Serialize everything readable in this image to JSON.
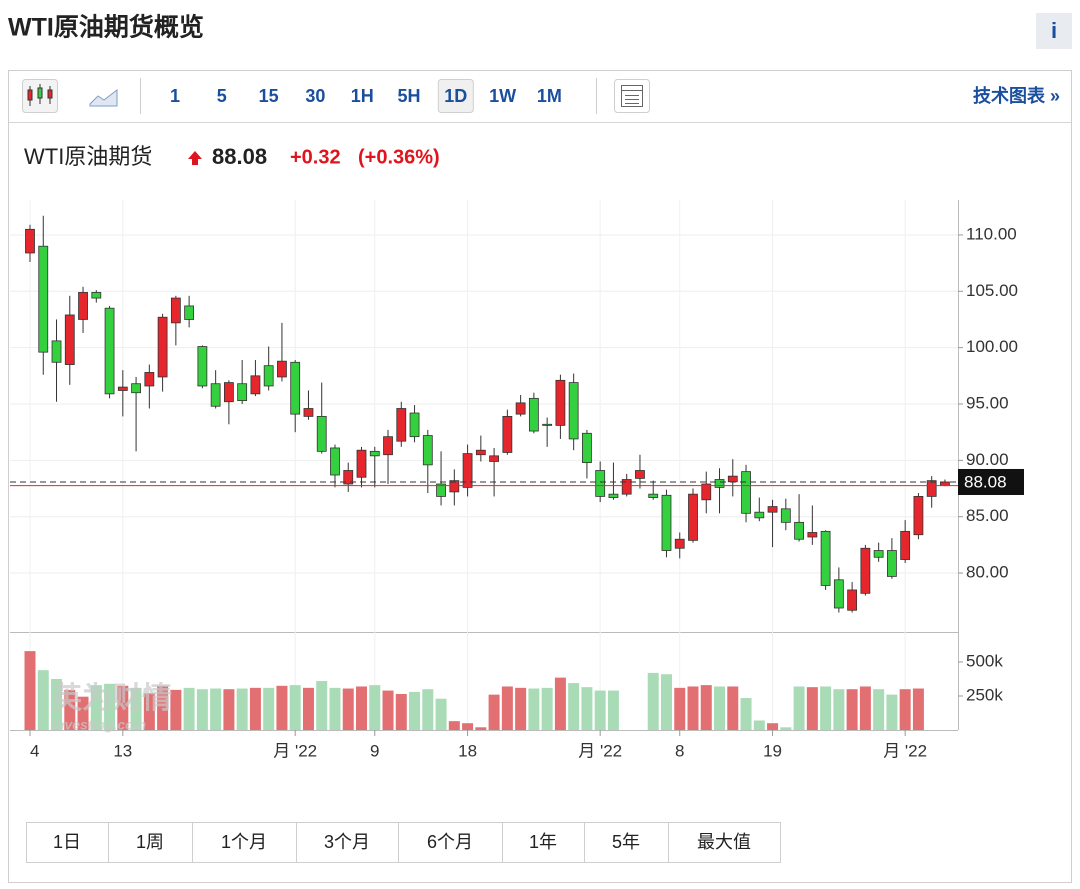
{
  "header": {
    "title": "WTI原油期货概览",
    "info": "i"
  },
  "toolbar": {
    "intervals": [
      "1",
      "5",
      "15",
      "30",
      "1H",
      "5H",
      "1D",
      "1W",
      "1M"
    ],
    "active_interval": 6,
    "link": "技术图表 »"
  },
  "quote": {
    "name": "WTI原油期货",
    "last": 88.08,
    "change": "+0.32",
    "change_pct": "(+0.36%)"
  },
  "watermark": {
    "brand": "英为财情",
    "site": "Investing.com"
  },
  "chart_data": {
    "type": "candlestick",
    "categories": [
      "4",
      null,
      null,
      null,
      null,
      null,
      null,
      "13",
      null,
      null,
      null,
      null,
      null,
      null,
      null,
      null,
      null,
      null,
      null,
      null,
      "月 '22",
      null,
      null,
      null,
      null,
      null,
      "9",
      null,
      null,
      null,
      null,
      null,
      null,
      "18",
      null,
      null,
      null,
      null,
      null,
      null,
      null,
      null,
      null,
      "月 '22",
      null,
      null,
      null,
      null,
      null,
      "8",
      null,
      null,
      null,
      null,
      null,
      null,
      "19",
      null,
      null,
      null,
      null,
      null,
      null,
      null,
      null,
      null,
      "月 '22",
      null,
      null,
      null
    ],
    "open": [
      108.4,
      109.0,
      100.6,
      98.5,
      102.5,
      104.9,
      103.5,
      96.2,
      96.8,
      96.6,
      97.4,
      102.2,
      103.7,
      100.1,
      96.8,
      95.2,
      96.8,
      95.9,
      98.4,
      97.4,
      98.7,
      93.9,
      93.9,
      91.1,
      87.9,
      88.5,
      90.8,
      90.5,
      91.7,
      94.2,
      92.2,
      87.9,
      87.2,
      87.6,
      90.5,
      89.9,
      90.7,
      94.1,
      95.5,
      93.2,
      93.1,
      96.9,
      92.4,
      89.1,
      87.0,
      87.0,
      88.4,
      87.0,
      86.9,
      82.2,
      82.9,
      86.5,
      88.3,
      88.1,
      89.0,
      85.4,
      85.4,
      85.7,
      84.5,
      83.2,
      83.7,
      79.4,
      76.7,
      78.2,
      82.0,
      82.0,
      81.2,
      83.4,
      86.8,
      87.76
    ],
    "high": [
      110.9,
      111.7,
      102.5,
      104.6,
      105.4,
      105.1,
      103.7,
      98.0,
      97.4,
      98.5,
      103.0,
      104.6,
      104.6,
      100.2,
      98.0,
      97.1,
      98.9,
      98.9,
      100.1,
      102.2,
      98.9,
      96.2,
      96.9,
      91.4,
      89.8,
      91.2,
      91.2,
      92.7,
      95.2,
      94.9,
      92.7,
      90.8,
      89.2,
      91.4,
      92.2,
      91.1,
      94.5,
      95.8,
      96.0,
      93.8,
      97.6,
      97.7,
      92.7,
      89.9,
      89.8,
      88.8,
      90.5,
      88.2,
      87.4,
      83.6,
      87.5,
      89.0,
      89.3,
      90.1,
      89.6,
      86.7,
      86.5,
      86.6,
      87.0,
      86.0,
      83.8,
      80.5,
      79.2,
      82.5,
      82.7,
      83.1,
      84.7,
      87.1,
      88.6,
      88.3
    ],
    "low": [
      107.6,
      97.6,
      95.2,
      96.7,
      101.3,
      104.0,
      95.5,
      93.9,
      90.8,
      94.6,
      96.1,
      100.2,
      101.8,
      96.4,
      94.6,
      93.2,
      95.0,
      95.7,
      96.2,
      97.0,
      92.5,
      93.6,
      90.6,
      87.6,
      87.2,
      87.6,
      87.6,
      87.9,
      91.2,
      91.6,
      87.1,
      86.0,
      86.0,
      86.8,
      89.9,
      86.8,
      90.5,
      93.9,
      92.4,
      91.2,
      91.9,
      90.9,
      88.4,
      86.3,
      86.5,
      86.8,
      87.5,
      86.5,
      81.4,
      81.3,
      82.7,
      85.3,
      85.3,
      86.8,
      84.5,
      84.6,
      82.3,
      83.8,
      82.8,
      82.5,
      78.5,
      76.5,
      76.5,
      78.0,
      81.0,
      79.5,
      80.9,
      83.0,
      85.8,
      87.7
    ],
    "close": [
      110.5,
      99.6,
      98.7,
      102.9,
      104.9,
      104.4,
      95.9,
      96.5,
      96.0,
      97.8,
      102.7,
      104.4,
      102.5,
      96.6,
      94.8,
      96.9,
      95.3,
      97.5,
      96.6,
      98.8,
      94.1,
      94.6,
      90.8,
      88.7,
      89.1,
      90.9,
      90.4,
      92.1,
      94.6,
      92.1,
      89.6,
      86.8,
      88.2,
      90.6,
      90.9,
      90.4,
      93.9,
      95.1,
      92.6,
      93.1,
      97.1,
      91.9,
      89.8,
      86.8,
      86.7,
      88.3,
      89.1,
      86.7,
      82.0,
      83.0,
      87.0,
      87.9,
      87.6,
      88.6,
      85.3,
      84.9,
      85.9,
      84.5,
      83.0,
      83.6,
      78.9,
      76.9,
      78.5,
      82.2,
      81.4,
      79.7,
      83.7,
      86.8,
      88.2,
      88.08
    ],
    "up_color": "#e5272d",
    "down_color": "#35d03f",
    "ylim": [
      74.77,
      113.1
    ],
    "yticks": [
      {
        "value": 80,
        "label": "80.00"
      },
      {
        "value": 85,
        "label": "85.00"
      },
      {
        "value": 90,
        "label": "90.00"
      },
      {
        "value": 95,
        "label": "95.00"
      },
      {
        "value": 100,
        "label": "100.00"
      },
      {
        "value": 105,
        "label": "105.00"
      },
      {
        "value": 110,
        "label": "110.00"
      }
    ],
    "last_price": 88.08,
    "prev_close": 87.76,
    "volume": {
      "values": [
        580000,
        440000,
        375000,
        295000,
        245000,
        330000,
        340000,
        325000,
        310000,
        270000,
        325000,
        295000,
        310000,
        300000,
        305000,
        300000,
        305000,
        310000,
        310000,
        325000,
        330000,
        310000,
        360000,
        310000,
        305000,
        320000,
        330000,
        290000,
        265000,
        280000,
        300000,
        230000,
        65000,
        50000,
        20000,
        260000,
        320000,
        310000,
        305000,
        310000,
        385000,
        345000,
        315000,
        290000,
        290000,
        null,
        null,
        420000,
        410000,
        310000,
        320000,
        330000,
        320000,
        320000,
        235000,
        70000,
        50000,
        20000,
        320000,
        315000,
        320000,
        300000,
        300000,
        320000,
        300000,
        260000,
        300000,
        305000,
        null,
        null
      ],
      "up_color": "#e27072",
      "down_color": "#a9dcb6",
      "ylim": [
        0,
        720600
      ],
      "yticks": [
        {
          "value": 250000,
          "label": "250k"
        },
        {
          "value": 500000,
          "label": "500k"
        }
      ]
    },
    "grid": true
  },
  "range_buttons": [
    "1日",
    "1周",
    "1个月",
    "3个月",
    "6个月",
    "1年",
    "5年",
    "最大值"
  ]
}
